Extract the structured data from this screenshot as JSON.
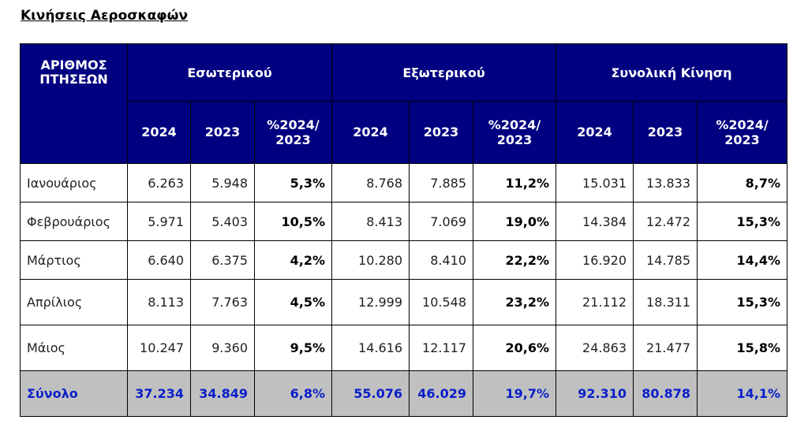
{
  "title": "Κινήσεις Αεροσκαφών",
  "header": {
    "corner": "ΑΡΙΘΜΟΣ ΠΤΗΣΕΩΝ",
    "groups": [
      "Εσωτερικού",
      "Εξωτερικού",
      "Συνολική Κίνηση"
    ],
    "sub": [
      "2024",
      "2023",
      "%2024/ 2023"
    ]
  },
  "colors": {
    "header_bg": "#000080",
    "total_bg": "#c0c0c0",
    "total_text": "#0a1ec8"
  },
  "rows": [
    {
      "month": "Ιανουάριος",
      "values": [
        "6.263",
        "5.948",
        "5,3%",
        "8.768",
        "7.885",
        "11,2%",
        "15.031",
        "13.833",
        "8,7%"
      ]
    },
    {
      "month": "Φεβρουάριος",
      "values": [
        "5.971",
        "5.403",
        "10,5%",
        "8.413",
        "7.069",
        "19,0%",
        "14.384",
        "12.472",
        "15,3%"
      ]
    },
    {
      "month": "Μάρτιος",
      "values": [
        "6.640",
        "6.375",
        "4,2%",
        "10.280",
        "8.410",
        "22,2%",
        "16.920",
        "14.785",
        "14,4%"
      ]
    },
    {
      "month": "Απρίλιος",
      "values": [
        "8.113",
        "7.763",
        "4,5%",
        "12.999",
        "10.548",
        "23,2%",
        "21.112",
        "18.311",
        "15,3%"
      ]
    },
    {
      "month": "Μάιος",
      "values": [
        "10.247",
        "9.360",
        "9,5%",
        "14.616",
        "12.117",
        "20,6%",
        "24.863",
        "21.477",
        "15,8%"
      ]
    }
  ],
  "total": {
    "label": "Σύνολο",
    "values": [
      "37.234",
      "34.849",
      "6,8%",
      "55.076",
      "46.029",
      "19,7%",
      "92.310",
      "80.878",
      "14,1%"
    ]
  }
}
